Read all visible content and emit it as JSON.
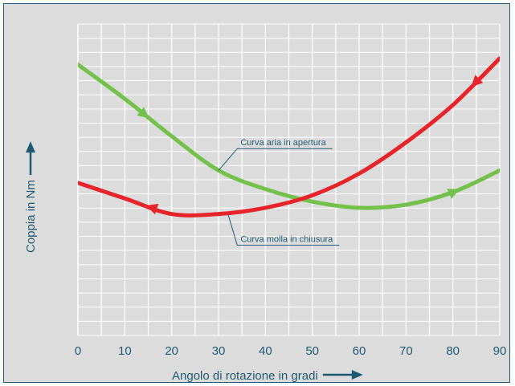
{
  "chart_data": {
    "type": "line",
    "title": "",
    "xlabel": "Angolo di rotazione in gradi",
    "ylabel": "Coppia in Nm",
    "xlim": [
      0,
      90
    ],
    "ylim": [
      0,
      10
    ],
    "x_ticks": [
      "0",
      "10",
      "20",
      "30",
      "40",
      "50",
      "60",
      "70",
      "80",
      "90"
    ],
    "grid": true,
    "background_color": "#dcdcdc",
    "frame_color": "#1e5a74",
    "series": [
      {
        "color": "#73c14a",
        "arrow_direction": "forward",
        "arrow_at_x": [
          14,
          80
        ],
        "x": [
          0,
          10,
          20,
          30,
          40,
          50,
          60,
          70,
          80,
          90
        ],
        "y": [
          8.7,
          7.6,
          6.4,
          5.3,
          4.7,
          4.3,
          4.1,
          4.2,
          4.6,
          5.3
        ]
      },
      {
        "color": "#e8242b",
        "arrow_direction": "backward",
        "arrow_at_x": [
          16,
          85
        ],
        "x": [
          0,
          10,
          20,
          30,
          40,
          50,
          60,
          70,
          80,
          90
        ],
        "y": [
          4.9,
          4.4,
          3.9,
          3.9,
          4.1,
          4.5,
          5.2,
          6.2,
          7.4,
          8.9
        ]
      }
    ],
    "annotations": [
      {
        "text": "Curva aria in apertura",
        "point": [
          30,
          5.3
        ],
        "label_at": [
          34,
          6.0
        ]
      },
      {
        "text": "Curva molla in chiusura",
        "point": [
          32,
          3.9
        ],
        "label_at": [
          34,
          2.9
        ]
      }
    ]
  }
}
